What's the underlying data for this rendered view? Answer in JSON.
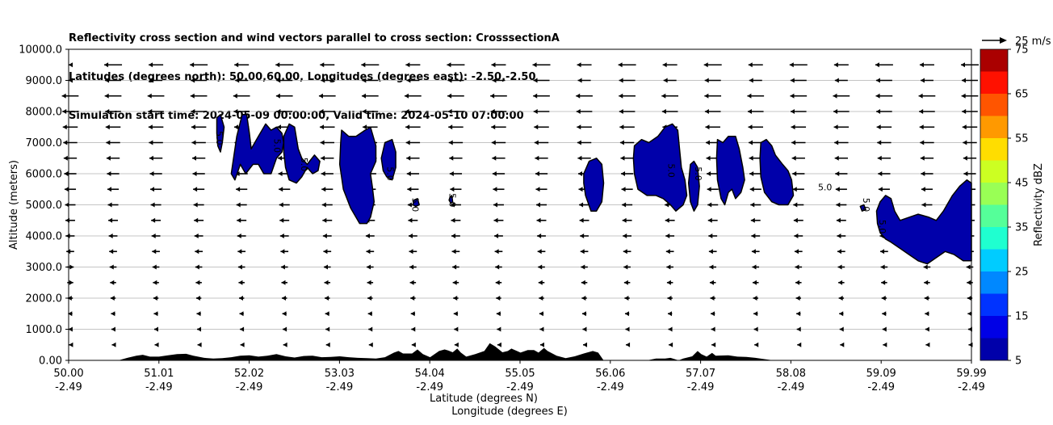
{
  "title_lines": [
    "Reflectivity cross section and wind vectors parallel to cross section: CrosssectionA",
    "Latitudes (degrees north): 50.00,60.00, Longitudes (degrees east): -2.50,-2.50",
    "Simulation start time: 2024-05-09 00:00:00, Valid time: 2024-05-10 07:00:00"
  ],
  "chart_data": {
    "type": "heatmap",
    "description_of_marks": "filled reflectivity contours with wind-vector arrows over terrain",
    "xlabel_line1": "Latitude (degrees N)",
    "xlabel_line2": "Longitude (degrees E)",
    "ylabel": "Altitude (meters)",
    "xlim": [
      50.0,
      59.99
    ],
    "ylim": [
      0,
      10000
    ],
    "x_ticks": [
      {
        "lat": "50.00",
        "lon": "-2.49"
      },
      {
        "lat": "51.01",
        "lon": "-2.49"
      },
      {
        "lat": "52.02",
        "lon": "-2.49"
      },
      {
        "lat": "53.03",
        "lon": "-2.49"
      },
      {
        "lat": "54.04",
        "lon": "-2.49"
      },
      {
        "lat": "55.05",
        "lon": "-2.49"
      },
      {
        "lat": "56.06",
        "lon": "-2.49"
      },
      {
        "lat": "57.07",
        "lon": "-2.49"
      },
      {
        "lat": "58.08",
        "lon": "-2.49"
      },
      {
        "lat": "59.09",
        "lon": "-2.49"
      },
      {
        "lat": "59.99",
        "lon": "-2.49"
      }
    ],
    "y_ticks": [
      "0.00",
      "1000.0",
      "2000.0",
      "3000.0",
      "4000.0",
      "5000.0",
      "6000.0",
      "7000.0",
      "8000.0",
      "9000.0",
      "10000.0"
    ],
    "grid": "horizontal",
    "colorbar": {
      "label": "Reflectivity dBZ",
      "levels": [
        5,
        10,
        15,
        20,
        25,
        30,
        35,
        40,
        45,
        50,
        55,
        60,
        65,
        70,
        75
      ],
      "tick_labels": [
        "5",
        "15",
        "25",
        "35",
        "45",
        "55",
        "65",
        "75"
      ],
      "colors": [
        "#0000aa",
        "#0000e6",
        "#0033ff",
        "#0088ff",
        "#00ccff",
        "#1fffd0",
        "#55ff99",
        "#99ff55",
        "#ccff22",
        "#ffdd00",
        "#ff9900",
        "#ff5500",
        "#ff1100",
        "#aa0000"
      ]
    },
    "reference_vector_label": "25 m/s",
    "contour_label_text": "5.0",
    "contour_label_positions": [
      {
        "lat": 51.66,
        "alt": 7150,
        "rot": 90
      },
      {
        "lat": 52.3,
        "alt": 6900,
        "rot": 90
      },
      {
        "lat": 52.6,
        "alt": 6300,
        "rot": 90
      },
      {
        "lat": 53.55,
        "alt": 6000,
        "rot": 90
      },
      {
        "lat": 53.83,
        "alt": 5000,
        "rot": 90
      },
      {
        "lat": 54.24,
        "alt": 5150,
        "rot": 90
      },
      {
        "lat": 56.66,
        "alt": 6100,
        "rot": 90
      },
      {
        "lat": 56.96,
        "alt": 6000,
        "rot": 90
      },
      {
        "lat": 58.37,
        "alt": 5550,
        "rot": 0
      },
      {
        "lat": 58.82,
        "alt": 5000,
        "rot": 90
      },
      {
        "lat": 59.0,
        "alt": 4300,
        "rot": 90
      }
    ],
    "reflectivity_regions": [
      {
        "value": 5,
        "outline": [
          [
            51.64,
            7800
          ],
          [
            51.68,
            7900
          ],
          [
            51.72,
            7500
          ],
          [
            51.7,
            7000
          ],
          [
            51.68,
            6700
          ],
          [
            51.65,
            6900
          ],
          [
            51.64,
            7300
          ]
        ]
      },
      {
        "value": 5,
        "outline": [
          [
            51.8,
            6000
          ],
          [
            51.86,
            7200
          ],
          [
            51.92,
            7900
          ],
          [
            51.97,
            7900
          ],
          [
            52.0,
            7300
          ],
          [
            52.02,
            6800
          ],
          [
            52.1,
            7200
          ],
          [
            52.18,
            7600
          ],
          [
            52.24,
            7400
          ],
          [
            52.3,
            7500
          ],
          [
            52.36,
            7300
          ],
          [
            52.38,
            7000
          ],
          [
            52.36,
            6700
          ],
          [
            52.3,
            6500
          ],
          [
            52.24,
            6000
          ],
          [
            52.16,
            6000
          ],
          [
            52.1,
            6300
          ],
          [
            52.04,
            6300
          ],
          [
            51.96,
            6000
          ],
          [
            51.9,
            6300
          ],
          [
            51.84,
            5800
          ]
        ]
      },
      {
        "value": 5,
        "outline": [
          [
            52.38,
            7200
          ],
          [
            52.44,
            7600
          ],
          [
            52.5,
            7500
          ],
          [
            52.54,
            6800
          ],
          [
            52.58,
            6500
          ],
          [
            52.64,
            6300
          ],
          [
            52.72,
            6600
          ],
          [
            52.78,
            6400
          ],
          [
            52.76,
            6100
          ],
          [
            52.7,
            6000
          ],
          [
            52.64,
            6200
          ],
          [
            52.58,
            5900
          ],
          [
            52.52,
            5700
          ],
          [
            52.44,
            5800
          ],
          [
            52.4,
            6200
          ],
          [
            52.38,
            6700
          ]
        ]
      },
      {
        "value": 5,
        "outline": [
          [
            53.02,
            7400
          ],
          [
            53.1,
            7200
          ],
          [
            53.18,
            7200
          ],
          [
            53.28,
            7400
          ],
          [
            53.34,
            7500
          ],
          [
            53.4,
            6900
          ],
          [
            53.4,
            6400
          ],
          [
            53.34,
            6000
          ],
          [
            53.36,
            5600
          ],
          [
            53.38,
            5100
          ],
          [
            53.34,
            4600
          ],
          [
            53.3,
            4400
          ],
          [
            53.22,
            4400
          ],
          [
            53.12,
            4900
          ],
          [
            53.04,
            5500
          ],
          [
            53.0,
            6300
          ],
          [
            53.01,
            7000
          ]
        ]
      },
      {
        "value": 5,
        "outline": [
          [
            53.46,
            6500
          ],
          [
            53.5,
            7000
          ],
          [
            53.58,
            7100
          ],
          [
            53.62,
            6700
          ],
          [
            53.62,
            6200
          ],
          [
            53.58,
            5800
          ],
          [
            53.52,
            5900
          ],
          [
            53.48,
            6100
          ]
        ]
      },
      {
        "value": 5,
        "outline": [
          [
            53.82,
            5150
          ],
          [
            53.86,
            5200
          ],
          [
            53.88,
            5000
          ],
          [
            53.84,
            4950
          ],
          [
            53.81,
            5000
          ]
        ]
      },
      {
        "value": 5,
        "outline": [
          [
            54.22,
            5250
          ],
          [
            54.24,
            5300
          ],
          [
            54.25,
            5100
          ],
          [
            54.23,
            5050
          ],
          [
            54.21,
            5150
          ]
        ]
      },
      {
        "value": 5,
        "outline": [
          [
            55.7,
            6000
          ],
          [
            55.76,
            6400
          ],
          [
            55.84,
            6500
          ],
          [
            55.9,
            6300
          ],
          [
            55.92,
            5700
          ],
          [
            55.9,
            5100
          ],
          [
            55.84,
            4800
          ],
          [
            55.78,
            4800
          ],
          [
            55.72,
            5300
          ],
          [
            55.7,
            5700
          ]
        ]
      },
      {
        "value": 5,
        "outline": [
          [
            56.26,
            6900
          ],
          [
            56.34,
            7100
          ],
          [
            56.42,
            7000
          ],
          [
            56.52,
            7200
          ],
          [
            56.6,
            7500
          ],
          [
            56.68,
            7600
          ],
          [
            56.74,
            7400
          ],
          [
            56.76,
            6800
          ],
          [
            56.78,
            6200
          ],
          [
            56.82,
            5800
          ],
          [
            56.84,
            5300
          ],
          [
            56.8,
            5000
          ],
          [
            56.72,
            4800
          ],
          [
            56.66,
            5000
          ],
          [
            56.58,
            5200
          ],
          [
            56.5,
            5300
          ],
          [
            56.4,
            5300
          ],
          [
            56.3,
            5500
          ],
          [
            56.26,
            6000
          ],
          [
            56.25,
            6500
          ]
        ]
      },
      {
        "value": 5,
        "outline": [
          [
            56.88,
            6300
          ],
          [
            56.92,
            6400
          ],
          [
            56.96,
            6200
          ],
          [
            56.98,
            5600
          ],
          [
            56.96,
            5000
          ],
          [
            56.92,
            4800
          ],
          [
            56.88,
            5100
          ],
          [
            56.86,
            5700
          ]
        ]
      },
      {
        "value": 5,
        "outline": [
          [
            57.18,
            7100
          ],
          [
            57.24,
            7000
          ],
          [
            57.3,
            7200
          ],
          [
            57.38,
            7200
          ],
          [
            57.42,
            6800
          ],
          [
            57.46,
            6200
          ],
          [
            57.48,
            5800
          ],
          [
            57.44,
            5400
          ],
          [
            57.38,
            5200
          ],
          [
            57.34,
            5500
          ],
          [
            57.3,
            5400
          ],
          [
            57.26,
            5000
          ],
          [
            57.22,
            5200
          ],
          [
            57.18,
            5800
          ],
          [
            57.17,
            6500
          ]
        ]
      },
      {
        "value": 5,
        "outline": [
          [
            57.66,
            7000
          ],
          [
            57.72,
            7100
          ],
          [
            57.78,
            6900
          ],
          [
            57.82,
            6600
          ],
          [
            57.9,
            6300
          ],
          [
            57.96,
            6100
          ],
          [
            58.0,
            5800
          ],
          [
            58.02,
            5300
          ],
          [
            57.96,
            5000
          ],
          [
            57.86,
            5000
          ],
          [
            57.78,
            5100
          ],
          [
            57.7,
            5400
          ],
          [
            57.66,
            5900
          ],
          [
            57.65,
            6500
          ]
        ]
      },
      {
        "value": 5,
        "outline": [
          [
            58.76,
            4950
          ],
          [
            58.8,
            5000
          ],
          [
            58.82,
            4850
          ],
          [
            58.78,
            4800
          ]
        ]
      },
      {
        "value": 5,
        "outline": [
          [
            58.94,
            4800
          ],
          [
            58.98,
            5100
          ],
          [
            59.04,
            5300
          ],
          [
            59.1,
            5200
          ],
          [
            59.14,
            4800
          ],
          [
            59.2,
            4500
          ],
          [
            59.3,
            4600
          ],
          [
            59.4,
            4700
          ],
          [
            59.52,
            4600
          ],
          [
            59.6,
            4500
          ],
          [
            59.68,
            4800
          ],
          [
            59.78,
            5300
          ],
          [
            59.86,
            5600
          ],
          [
            59.94,
            5800
          ],
          [
            59.99,
            5700
          ],
          [
            59.99,
            3200
          ],
          [
            59.9,
            3200
          ],
          [
            59.8,
            3400
          ],
          [
            59.7,
            3500
          ],
          [
            59.6,
            3300
          ],
          [
            59.5,
            3100
          ],
          [
            59.4,
            3200
          ],
          [
            59.3,
            3400
          ],
          [
            59.2,
            3600
          ],
          [
            59.1,
            3800
          ],
          [
            59.04,
            3900
          ],
          [
            58.98,
            4100
          ],
          [
            58.95,
            4400
          ]
        ]
      }
    ],
    "terrain_profile": [
      [
        50.0,
        0
      ],
      [
        50.55,
        0
      ],
      [
        50.65,
        80
      ],
      [
        50.75,
        150
      ],
      [
        50.82,
        180
      ],
      [
        50.9,
        120
      ],
      [
        51.0,
        120
      ],
      [
        51.1,
        160
      ],
      [
        51.2,
        200
      ],
      [
        51.3,
        210
      ],
      [
        51.38,
        150
      ],
      [
        51.5,
        80
      ],
      [
        51.6,
        60
      ],
      [
        51.7,
        70
      ],
      [
        51.8,
        100
      ],
      [
        51.9,
        150
      ],
      [
        52.0,
        160
      ],
      [
        52.1,
        120
      ],
      [
        52.2,
        150
      ],
      [
        52.3,
        200
      ],
      [
        52.4,
        130
      ],
      [
        52.5,
        90
      ],
      [
        52.6,
        140
      ],
      [
        52.7,
        150
      ],
      [
        52.8,
        100
      ],
      [
        52.9,
        110
      ],
      [
        53.0,
        130
      ],
      [
        53.1,
        100
      ],
      [
        53.2,
        80
      ],
      [
        53.3,
        70
      ],
      [
        53.4,
        60
      ],
      [
        53.5,
        100
      ],
      [
        53.6,
        250
      ],
      [
        53.65,
        300
      ],
      [
        53.7,
        220
      ],
      [
        53.8,
        220
      ],
      [
        53.86,
        350
      ],
      [
        53.92,
        200
      ],
      [
        54.0,
        100
      ],
      [
        54.1,
        300
      ],
      [
        54.16,
        350
      ],
      [
        54.2,
        320
      ],
      [
        54.25,
        260
      ],
      [
        54.3,
        380
      ],
      [
        54.34,
        250
      ],
      [
        54.4,
        120
      ],
      [
        54.5,
        200
      ],
      [
        54.6,
        300
      ],
      [
        54.66,
        550
      ],
      [
        54.72,
        450
      ],
      [
        54.8,
        260
      ],
      [
        54.86,
        300
      ],
      [
        54.9,
        380
      ],
      [
        54.96,
        300
      ],
      [
        55.0,
        250
      ],
      [
        55.08,
        330
      ],
      [
        55.15,
        330
      ],
      [
        55.2,
        250
      ],
      [
        55.26,
        400
      ],
      [
        55.3,
        300
      ],
      [
        55.4,
        150
      ],
      [
        55.5,
        70
      ],
      [
        55.6,
        130
      ],
      [
        55.7,
        220
      ],
      [
        55.8,
        300
      ],
      [
        55.86,
        250
      ],
      [
        55.92,
        0
      ],
      [
        56.4,
        0
      ],
      [
        56.5,
        60
      ],
      [
        56.6,
        60
      ],
      [
        56.66,
        80
      ],
      [
        56.75,
        0
      ],
      [
        56.8,
        60
      ],
      [
        56.9,
        130
      ],
      [
        56.96,
        300
      ],
      [
        57.0,
        200
      ],
      [
        57.06,
        120
      ],
      [
        57.12,
        240
      ],
      [
        57.16,
        150
      ],
      [
        57.3,
        160
      ],
      [
        57.4,
        120
      ],
      [
        57.5,
        110
      ],
      [
        57.6,
        80
      ],
      [
        57.7,
        40
      ],
      [
        57.8,
        0
      ],
      [
        59.99,
        0
      ]
    ]
  }
}
